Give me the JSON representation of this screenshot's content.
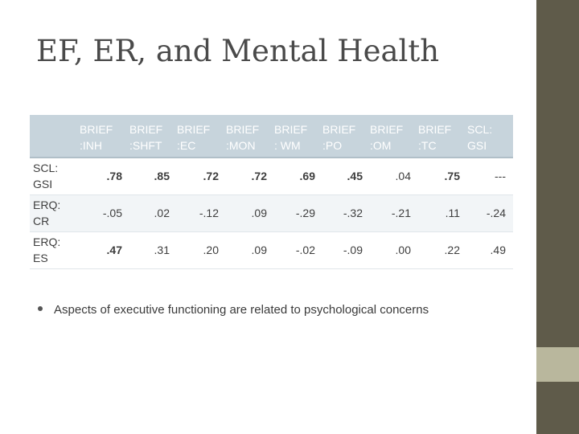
{
  "slide": {
    "title": "EF, ER, and Mental Health",
    "bullet": "Aspects of executive functioning are related to psychological concerns"
  },
  "table": {
    "headers": [
      {
        "line1": "",
        "line2": ""
      },
      {
        "line1": "BRIEF",
        "line2": ":INH"
      },
      {
        "line1": "BRIEF",
        "line2": ":SHFT"
      },
      {
        "line1": "BRIEF",
        "line2": ":EC"
      },
      {
        "line1": "BRIEF",
        "line2": ":MON"
      },
      {
        "line1": "BRIEF",
        "line2": ": WM"
      },
      {
        "line1": "BRIEF",
        "line2": ":PO"
      },
      {
        "line1": "BRIEF",
        "line2": ":OM"
      },
      {
        "line1": "BRIEF",
        "line2": ":TC"
      },
      {
        "line1": "SCL:",
        "line2": "GSI"
      }
    ],
    "rows": [
      {
        "label1": "SCL:",
        "label2": "GSI",
        "cells": [
          ".78",
          ".85",
          ".72",
          ".72",
          ".69",
          ".45",
          ".04",
          ".75",
          "---"
        ],
        "bold": [
          true,
          true,
          true,
          true,
          true,
          true,
          false,
          true,
          false
        ]
      },
      {
        "label1": "ERQ:",
        "label2": "CR",
        "cells": [
          "-.05",
          ".02",
          "-.12",
          ".09",
          "-.29",
          "-.32",
          "-.21",
          ".11",
          "-.24"
        ],
        "bold": [
          false,
          false,
          false,
          false,
          false,
          false,
          false,
          false,
          false
        ]
      },
      {
        "label1": "ERQ:",
        "label2": "ES",
        "cells": [
          ".47",
          ".31",
          ".20",
          ".09",
          "-.02",
          "-.09",
          ".00",
          ".22",
          ".49"
        ],
        "bold": [
          true,
          false,
          false,
          false,
          false,
          false,
          false,
          false,
          false
        ]
      }
    ]
  },
  "colors": {
    "header_bg": "#c7d4dc",
    "side_bar": "#5f5b4a",
    "side_block": "#b9b79d"
  }
}
